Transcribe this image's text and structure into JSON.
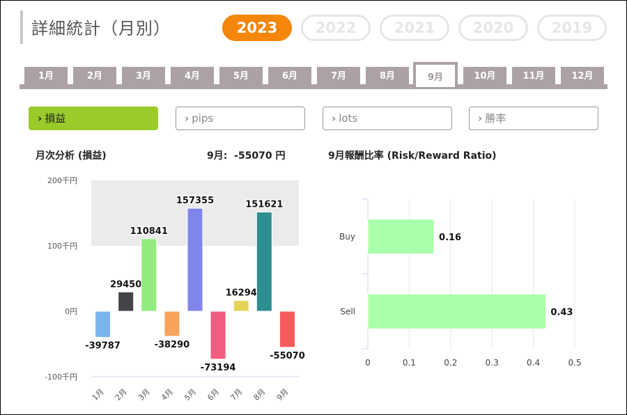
{
  "header": {
    "title": "詳細統計（月別）",
    "years": [
      "2023",
      "2022",
      "2021",
      "2020",
      "2019"
    ],
    "active_year": "2023"
  },
  "months": {
    "tabs": [
      "1月",
      "2月",
      "3月",
      "4月",
      "5月",
      "6月",
      "7月",
      "8月",
      "9月",
      "10月",
      "11月",
      "12月"
    ],
    "active": "9月"
  },
  "metrics": {
    "buttons": [
      {
        "label": "損益",
        "active": true
      },
      {
        "label": "pips",
        "active": false
      },
      {
        "label": "lots",
        "active": false
      },
      {
        "label": "勝率",
        "active": false
      }
    ],
    "chevron": "›"
  },
  "left_chart": {
    "heading": "月次分析 (損益)",
    "summary": "9月:  -55070 円"
  },
  "right_chart": {
    "heading": "9月報酬比率 (Risk/Reward Ratio)"
  },
  "chart_data": [
    {
      "type": "bar",
      "categories": [
        "1月",
        "2月",
        "3月",
        "4月",
        "5月",
        "6月",
        "7月",
        "8月",
        "9月"
      ],
      "values": [
        -39787,
        29450,
        110841,
        -38290,
        157355,
        -73194,
        16294,
        151621,
        -55070
      ],
      "value_labels": [
        "-39787",
        "29450",
        "110841",
        "-38290",
        "157355",
        "-73194",
        "16294",
        "151621",
        "-55070"
      ],
      "colors": [
        "#7cb5ec",
        "#434348",
        "#90ed7d",
        "#f7a35c",
        "#8085e9",
        "#f15c80",
        "#e4d354",
        "#2b908f",
        "#f45b5b"
      ],
      "ylim": [
        -100000,
        200000
      ],
      "yticks": [
        {
          "value": 200000,
          "label": "200千円"
        },
        {
          "value": 100000,
          "label": "100千円"
        },
        {
          "value": 0,
          "label": "0円"
        },
        {
          "value": -100000,
          "label": "-100千円"
        }
      ],
      "plot_band": [
        100000,
        200000
      ],
      "grid": false
    },
    {
      "type": "bar",
      "orientation": "horizontal",
      "categories": [
        "Buy",
        "Sell"
      ],
      "values": [
        0.16,
        0.43
      ],
      "value_labels": [
        "0.16",
        "0.43"
      ],
      "color": "#aaffaa",
      "xlim": [
        0,
        0.5
      ],
      "xticks": [
        "0",
        "0.1",
        "0.2",
        "0.3",
        "0.4",
        "0.5"
      ],
      "grid": true
    }
  ]
}
